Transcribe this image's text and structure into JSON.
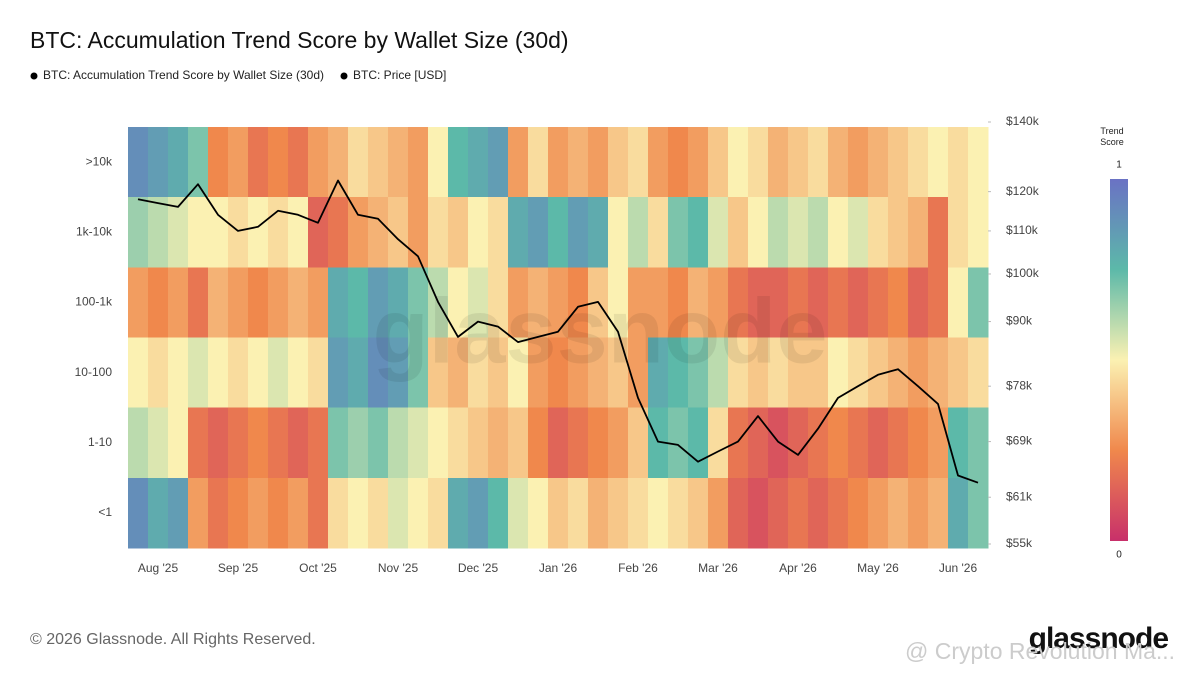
{
  "chart_data": {
    "type": "heatmap",
    "title": "BTC: Accumulation Trend Score by Wallet Size (30d)",
    "rows": [
      ">10k",
      "1k-10k",
      "100-1k",
      "10-100",
      "1-10",
      "<1"
    ],
    "categories": [
      null,
      "Aug '25",
      null,
      null,
      null,
      "Sep '25",
      null,
      null,
      null,
      "Oct '25",
      null,
      null,
      null,
      "Nov '25",
      null,
      null,
      null,
      "Dec '25",
      null,
      null,
      null,
      "Jan '26",
      null,
      null,
      null,
      "Feb '26",
      null,
      null,
      null,
      "Mar '26",
      null,
      null,
      null,
      "Apr '26",
      null,
      null,
      null,
      "May '26",
      null,
      null,
      null,
      "Jun '26",
      null
    ],
    "series": [
      {
        "name": "BTC: Accumulation Trend Score by Wallet Size (30d)",
        "type": "heatmap",
        "values": [
          [
            0.9,
            0.85,
            0.8,
            0.7,
            0.25,
            0.3,
            0.2,
            0.25,
            0.2,
            0.3,
            0.35,
            0.45,
            0.4,
            0.35,
            0.3,
            0.5,
            0.75,
            0.8,
            0.85,
            0.3,
            0.45,
            0.3,
            0.35,
            0.3,
            0.4,
            0.45,
            0.3,
            0.25,
            0.3,
            0.4,
            0.5,
            0.45,
            0.35,
            0.4,
            0.45,
            0.35,
            0.3,
            0.35,
            0.4,
            0.45,
            0.5,
            0.45,
            0.5
          ],
          [
            0.65,
            0.6,
            0.55,
            0.5,
            0.5,
            0.45,
            0.5,
            0.45,
            0.5,
            0.15,
            0.2,
            0.3,
            0.35,
            0.4,
            0.3,
            0.45,
            0.4,
            0.5,
            0.45,
            0.8,
            0.85,
            0.75,
            0.85,
            0.8,
            0.5,
            0.6,
            0.45,
            0.7,
            0.75,
            0.55,
            0.4,
            0.5,
            0.6,
            0.55,
            0.6,
            0.5,
            0.55,
            0.45,
            0.4,
            0.35,
            0.2,
            0.45,
            0.5
          ],
          [
            0.3,
            0.25,
            0.3,
            0.2,
            0.35,
            0.3,
            0.25,
            0.3,
            0.35,
            0.3,
            0.8,
            0.75,
            0.85,
            0.8,
            0.7,
            0.6,
            0.5,
            0.55,
            0.45,
            0.3,
            0.35,
            0.3,
            0.25,
            0.4,
            0.5,
            0.3,
            0.3,
            0.25,
            0.35,
            0.3,
            0.2,
            0.15,
            0.15,
            0.2,
            0.15,
            0.2,
            0.15,
            0.2,
            0.25,
            0.15,
            0.2,
            0.5,
            0.7
          ],
          [
            0.5,
            0.45,
            0.5,
            0.55,
            0.5,
            0.45,
            0.5,
            0.55,
            0.5,
            0.45,
            0.85,
            0.8,
            0.9,
            0.85,
            0.7,
            0.4,
            0.35,
            0.45,
            0.4,
            0.5,
            0.3,
            0.25,
            0.3,
            0.35,
            0.4,
            0.3,
            0.8,
            0.75,
            0.7,
            0.6,
            0.45,
            0.4,
            0.45,
            0.4,
            0.4,
            0.5,
            0.45,
            0.4,
            0.35,
            0.3,
            0.35,
            0.4,
            0.45
          ],
          [
            0.6,
            0.55,
            0.5,
            0.2,
            0.15,
            0.2,
            0.25,
            0.2,
            0.15,
            0.2,
            0.7,
            0.65,
            0.7,
            0.6,
            0.55,
            0.5,
            0.45,
            0.4,
            0.35,
            0.4,
            0.25,
            0.15,
            0.2,
            0.25,
            0.3,
            0.4,
            0.75,
            0.7,
            0.75,
            0.45,
            0.2,
            0.15,
            0.1,
            0.15,
            0.2,
            0.25,
            0.2,
            0.15,
            0.2,
            0.25,
            0.3,
            0.75,
            0.7
          ],
          [
            0.9,
            0.8,
            0.85,
            0.3,
            0.2,
            0.25,
            0.3,
            0.25,
            0.3,
            0.2,
            0.45,
            0.5,
            0.45,
            0.55,
            0.5,
            0.45,
            0.8,
            0.85,
            0.75,
            0.55,
            0.5,
            0.4,
            0.45,
            0.35,
            0.4,
            0.45,
            0.5,
            0.45,
            0.4,
            0.3,
            0.15,
            0.1,
            0.15,
            0.2,
            0.15,
            0.2,
            0.25,
            0.3,
            0.35,
            0.3,
            0.35,
            0.8,
            0.7
          ]
        ]
      },
      {
        "name": "BTC: Price [USD]",
        "type": "line",
        "axis": "y2",
        "color": "#000000",
        "values": [
          118000,
          117000,
          116000,
          122000,
          114000,
          110000,
          111000,
          115000,
          114000,
          112000,
          123000,
          114000,
          113000,
          108000,
          104000,
          94000,
          87000,
          90000,
          89000,
          86000,
          87000,
          88000,
          93000,
          94000,
          88000,
          76000,
          69000,
          68500,
          66000,
          67500,
          69000,
          73000,
          69000,
          67000,
          71000,
          76000,
          78000,
          80000,
          81000,
          78000,
          75000,
          64000,
          63000
        ]
      }
    ],
    "y2lim": [
      55000,
      140000
    ],
    "y2scale": "log",
    "y2ticks": [
      {
        "value": 55000,
        "label": "$55k"
      },
      {
        "value": 61000,
        "label": "$61k"
      },
      {
        "value": 69000,
        "label": "$69k"
      },
      {
        "value": 78000,
        "label": "$78k"
      },
      {
        "value": 90000,
        "label": "$90k"
      },
      {
        "value": 100000,
        "label": "$100k"
      },
      {
        "value": 110000,
        "label": "$110k"
      },
      {
        "value": 120000,
        "label": "$120k"
      },
      {
        "value": 140000,
        "label": "$140k"
      }
    ],
    "colorscale": {
      "title": "Trend Score",
      "lim": [
        0,
        1
      ],
      "ticks": [
        1,
        0
      ],
      "colors": [
        "#c8306a",
        "#f0884c",
        "#fbf1b2",
        "#5cb9a9",
        "#6a72c4"
      ]
    },
    "watermark": "glassnode",
    "footer": "© 2026 Glassnode. All Rights Reserved.",
    "logo": "glassnode",
    "overlay": "@ Crypto Revolution Ma..."
  }
}
